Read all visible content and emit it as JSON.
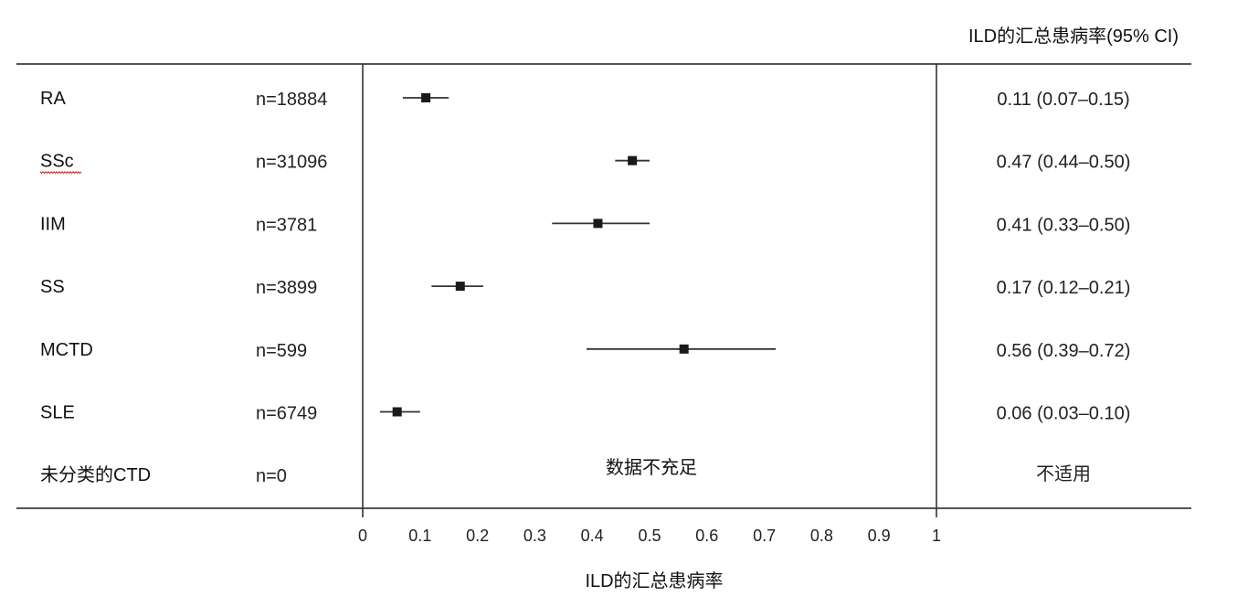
{
  "header": {
    "ci_column_title": "ILD的汇总患病率(95% CI)"
  },
  "chart_data": {
    "type": "forest",
    "xlabel": "ILD的汇总患病率",
    "xlim": [
      0,
      1
    ],
    "xticks": [
      "0",
      "0.1",
      "0.2",
      "0.3",
      "0.4",
      "0.5",
      "0.6",
      "0.7",
      "0.8",
      "0.9",
      "1"
    ],
    "rows": [
      {
        "label": "RA",
        "n": "n=18884",
        "estimate": 0.11,
        "lower": 0.07,
        "upper": 0.15,
        "ci_text": "0.11 (0.07–0.15)"
      },
      {
        "label": "SSc",
        "n": "n=31096",
        "estimate": 0.47,
        "lower": 0.44,
        "upper": 0.5,
        "ci_text": "0.47 (0.44–0.50)"
      },
      {
        "label": "IIM",
        "n": "n=3781",
        "estimate": 0.41,
        "lower": 0.33,
        "upper": 0.5,
        "ci_text": "0.41 (0.33–0.50)"
      },
      {
        "label": "SS",
        "n": "n=3899",
        "estimate": 0.17,
        "lower": 0.12,
        "upper": 0.21,
        "ci_text": "0.17 (0.12–0.21)"
      },
      {
        "label": "MCTD",
        "n": "n=599",
        "estimate": 0.56,
        "lower": 0.39,
        "upper": 0.72,
        "ci_text": "0.56 (0.39–0.72)"
      },
      {
        "label": "SLE",
        "n": "n=6749",
        "estimate": 0.06,
        "lower": 0.03,
        "upper": 0.1,
        "ci_text": "0.06 (0.03–0.10)"
      },
      {
        "label": "未分类的CTD",
        "n": "n=0",
        "estimate": null,
        "lower": null,
        "upper": null,
        "plot_note": "数据不充足",
        "ci_text": "不适用"
      }
    ]
  }
}
